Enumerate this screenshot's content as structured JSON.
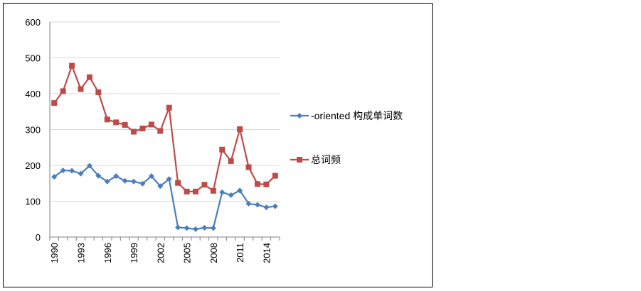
{
  "chart_data": {
    "type": "line",
    "title": "",
    "xlabel": "",
    "ylabel": "",
    "ylim": [
      0,
      600
    ],
    "yticks": [
      0,
      100,
      200,
      300,
      400,
      500,
      600
    ],
    "x": [
      1990,
      1991,
      1992,
      1993,
      1994,
      1995,
      1996,
      1997,
      1998,
      1999,
      2000,
      2001,
      2002,
      2003,
      2004,
      2005,
      2006,
      2007,
      2008,
      2009,
      2010,
      2011,
      2012,
      2013,
      2014,
      2015
    ],
    "xtick_labels": [
      "1990",
      "1993",
      "1996",
      "1999",
      "2002",
      "2005",
      "2008",
      "2011",
      "2014"
    ],
    "grid": "horizontal",
    "legend_position": "right",
    "series": [
      {
        "name": "-oriented 构成单词数",
        "color": "#4a7ebb",
        "marker": "diamond",
        "values": [
          168,
          186,
          185,
          177,
          199,
          171,
          155,
          170,
          157,
          155,
          149,
          170,
          142,
          162,
          27,
          25,
          22,
          26,
          25,
          125,
          117,
          130,
          93,
          90,
          83,
          86
        ]
      },
      {
        "name": "总词频",
        "color": "#be4b48",
        "marker": "square",
        "values": [
          374,
          407,
          478,
          413,
          446,
          404,
          328,
          320,
          313,
          294,
          303,
          314,
          296,
          361,
          151,
          127,
          127,
          146,
          129,
          244,
          212,
          301,
          195,
          148,
          147,
          171
        ]
      }
    ]
  }
}
